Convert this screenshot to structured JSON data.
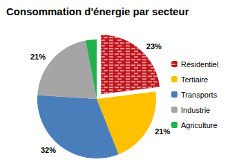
{
  "chart_data": {
    "type": "pie",
    "title": "Consommation d'énergie par secteur",
    "categories": [
      "Résidentiel",
      "Tertiaire",
      "Transports",
      "Industrie",
      "Agriculture"
    ],
    "values": [
      23,
      21,
      32,
      21,
      3
    ],
    "value_labels": [
      "23%",
      "21%",
      "32%",
      "21%",
      null
    ],
    "colors": [
      "#c0151b",
      "#ffc000",
      "#4a7ebb",
      "#a5a5a5",
      "#22b14c"
    ],
    "data_labels": true,
    "legend": "right"
  }
}
